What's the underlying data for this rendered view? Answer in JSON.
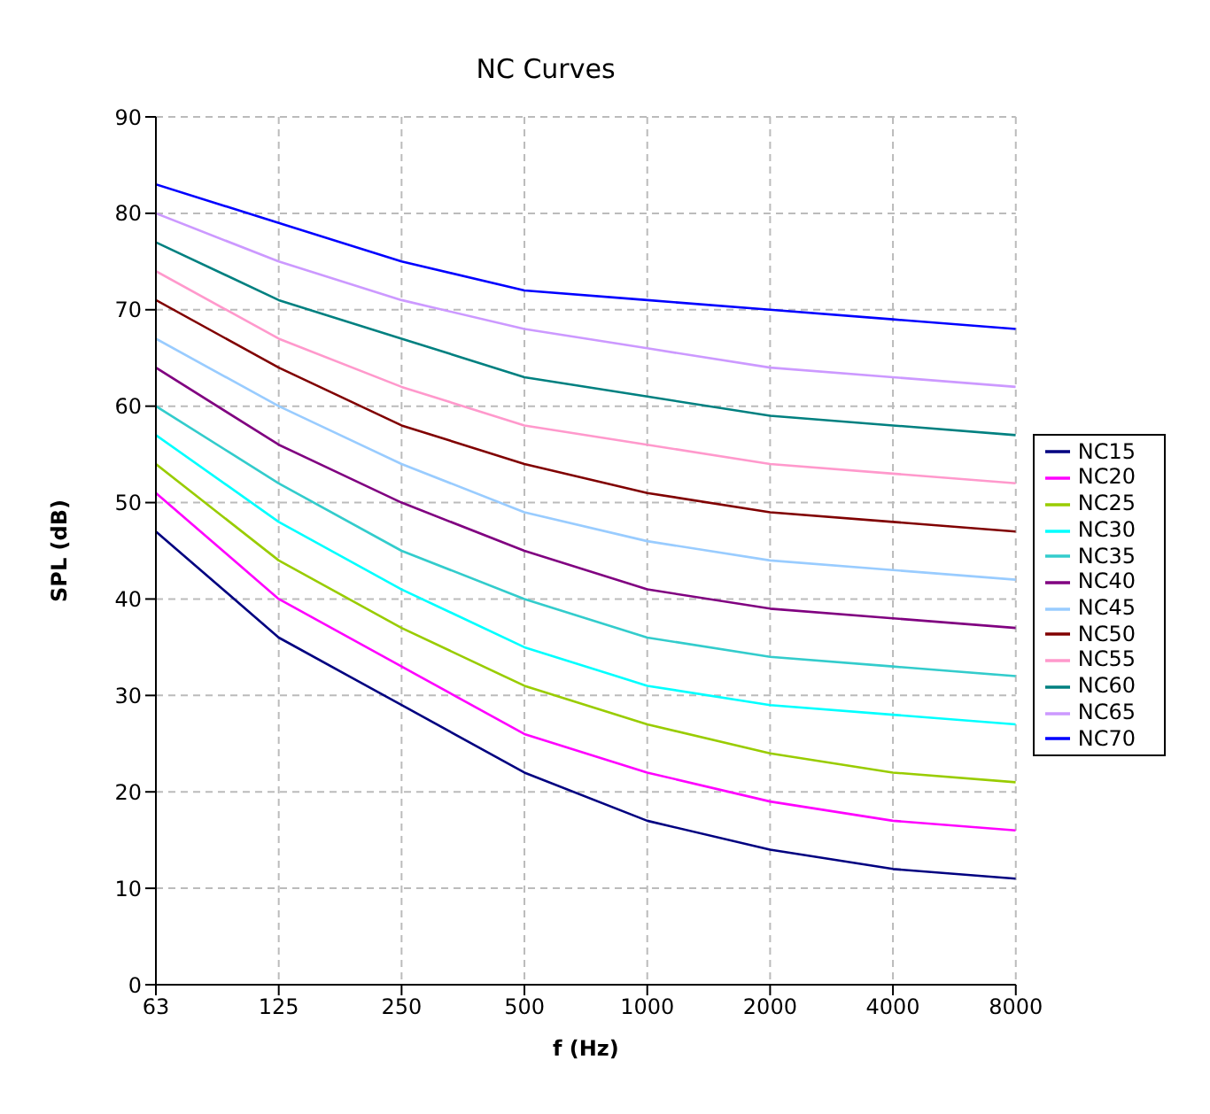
{
  "chart_data": {
    "type": "line",
    "title": "NC Curves",
    "xlabel": "f (Hz)",
    "ylabel": "SPL (dB)",
    "categories": [
      "63",
      "125",
      "250",
      "500",
      "1000",
      "2000",
      "4000",
      "8000"
    ],
    "ylim": [
      0,
      90
    ],
    "yticks": [
      0,
      10,
      20,
      30,
      40,
      50,
      60,
      70,
      80,
      90
    ],
    "grid": true,
    "legend": "right",
    "marker": "none",
    "series": [
      {
        "name": "NC15",
        "color": "#000080",
        "values": [
          47,
          36,
          29,
          22,
          17,
          14,
          12,
          11
        ]
      },
      {
        "name": "NC20",
        "color": "#ff00ff",
        "values": [
          51,
          40,
          33,
          26,
          22,
          19,
          17,
          16
        ]
      },
      {
        "name": "NC25",
        "color": "#99cc00",
        "values": [
          54,
          44,
          37,
          31,
          27,
          24,
          22,
          21
        ]
      },
      {
        "name": "NC30",
        "color": "#00ffff",
        "values": [
          57,
          48,
          41,
          35,
          31,
          29,
          28,
          27
        ]
      },
      {
        "name": "NC35",
        "color": "#33cccc",
        "values": [
          60,
          52,
          45,
          40,
          36,
          34,
          33,
          32
        ]
      },
      {
        "name": "NC40",
        "color": "#800080",
        "values": [
          64,
          56,
          50,
          45,
          41,
          39,
          38,
          37
        ]
      },
      {
        "name": "NC45",
        "color": "#99ccff",
        "values": [
          67,
          60,
          54,
          49,
          46,
          44,
          43,
          42
        ]
      },
      {
        "name": "NC50",
        "color": "#800000",
        "values": [
          71,
          64,
          58,
          54,
          51,
          49,
          48,
          47
        ]
      },
      {
        "name": "NC55",
        "color": "#ff99cc",
        "values": [
          74,
          67,
          62,
          58,
          56,
          54,
          53,
          52
        ]
      },
      {
        "name": "NC60",
        "color": "#008080",
        "values": [
          77,
          71,
          67,
          63,
          61,
          59,
          58,
          57
        ]
      },
      {
        "name": "NC65",
        "color": "#cc99ff",
        "values": [
          80,
          75,
          71,
          68,
          66,
          64,
          63,
          62
        ]
      },
      {
        "name": "NC70",
        "color": "#0000ff",
        "values": [
          83,
          79,
          75,
          72,
          71,
          70,
          69,
          68
        ]
      }
    ]
  }
}
